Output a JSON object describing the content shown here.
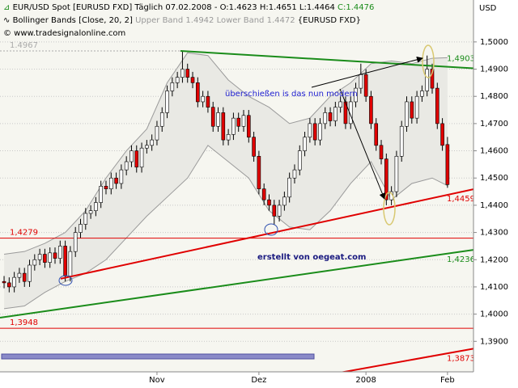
{
  "chart_data": {
    "type": "candlestick",
    "title": "EUR/USD Spot [EURUSD FXD]  Täglich",
    "title_info": "07.02.2008 - O:1.4623 H:1.4651 L:1.4464",
    "title_close": "C:1.4476",
    "indicator": "Bollinger Bands [Close, 20, 2]",
    "indicator_bands": "Upper Band 1.4942 Lower Band 1.4472",
    "indicator_source": "{EURUSD FXD}",
    "copyright": "© www.tradesignalonline.com",
    "y_unit": "USD",
    "annotations": [
      "überschießen is das  nun modern",
      "erstellt von oegeat.com"
    ],
    "categories": [
      null,
      null,
      null,
      null,
      null,
      null,
      null,
      null,
      null,
      null,
      null,
      null,
      null,
      null,
      null,
      null,
      null,
      null,
      null,
      null,
      null,
      null,
      null,
      null,
      null,
      null,
      null,
      null,
      null,
      null,
      "Nov",
      null,
      null,
      null,
      null,
      null,
      null,
      null,
      null,
      null,
      null,
      null,
      null,
      null,
      null,
      null,
      null,
      null,
      null,
      null,
      "Dez",
      null,
      null,
      null,
      null,
      null,
      null,
      null,
      null,
      null,
      null,
      null,
      null,
      null,
      null,
      null,
      null,
      null,
      null,
      null,
      null,
      "2008",
      null,
      null,
      null,
      null,
      null,
      null,
      null,
      null,
      null,
      null,
      null,
      null,
      null,
      null,
      null,
      "Feb"
    ],
    "xlim": [
      -0.8,
      92.1
    ],
    "ylim": [
      1.3788,
      1.5154
    ],
    "yticks": [
      {
        "value": 1.39,
        "label": "1,3900"
      },
      {
        "value": 1.4,
        "label": "1,4000"
      },
      {
        "value": 1.41,
        "label": "1,4100"
      },
      {
        "value": 1.42,
        "label": "1,4200"
      },
      {
        "value": 1.43,
        "label": "1,4300"
      },
      {
        "value": 1.44,
        "label": "1,4400"
      },
      {
        "value": 1.45,
        "label": "1,4500"
      },
      {
        "value": 1.46,
        "label": "1,4600"
      },
      {
        "value": 1.47,
        "label": "1,4700"
      },
      {
        "value": 1.48,
        "label": "1,4800"
      },
      {
        "value": 1.49,
        "label": "1,4900"
      },
      {
        "value": 1.5,
        "label": "1,5000"
      }
    ],
    "grid": true,
    "up_color": "#ffffff",
    "down_color": "#e00000",
    "series": [
      {
        "name": "EUR/USD Spot [EURUSD FXD]",
        "open": [
          1.412,
          1.4115,
          1.41,
          1.4135,
          1.415,
          1.412,
          1.418,
          1.42,
          1.422,
          1.419,
          1.4225,
          1.4205,
          1.425,
          1.414,
          1.423,
          1.43,
          1.433,
          1.437,
          1.438,
          1.441,
          1.447,
          1.446,
          1.45,
          1.448,
          1.453,
          1.456,
          1.46,
          1.454,
          1.461,
          1.462,
          1.464,
          1.469,
          1.474,
          1.482,
          1.485,
          1.487,
          1.49,
          1.487,
          1.485,
          1.478,
          1.48,
          1.476,
          1.469,
          1.474,
          1.464,
          1.466,
          1.472,
          1.469,
          1.473,
          1.465,
          1.458,
          1.446,
          1.442,
          1.44,
          1.436,
          1.44,
          1.443,
          1.45,
          1.453,
          1.46,
          1.465,
          1.47,
          1.464,
          1.47,
          1.474,
          1.471,
          1.476,
          1.478,
          1.47,
          1.478,
          1.483,
          1.488,
          1.48,
          1.47,
          1.462,
          1.457,
          1.442,
          1.445,
          1.458,
          1.469,
          1.478,
          1.472,
          1.48,
          1.482,
          1.49,
          1.483,
          1.47,
          1.4623
        ],
        "high": [
          1.414,
          1.4135,
          1.4155,
          1.417,
          1.417,
          1.42,
          1.422,
          1.424,
          1.424,
          1.4245,
          1.4245,
          1.427,
          1.427,
          1.425,
          1.432,
          1.435,
          1.439,
          1.44,
          1.443,
          1.449,
          1.449,
          1.452,
          1.452,
          1.455,
          1.458,
          1.462,
          1.462,
          1.463,
          1.464,
          1.466,
          1.471,
          1.476,
          1.484,
          1.487,
          1.489,
          1.4967,
          1.492,
          1.489,
          1.487,
          1.482,
          1.482,
          1.478,
          1.476,
          1.476,
          1.468,
          1.474,
          1.474,
          1.475,
          1.475,
          1.467,
          1.46,
          1.448,
          1.444,
          1.442,
          1.442,
          1.445,
          1.452,
          1.455,
          1.462,
          1.467,
          1.472,
          1.472,
          1.472,
          1.476,
          1.476,
          1.478,
          1.48,
          1.48,
          1.48,
          1.485,
          1.492,
          1.49,
          1.482,
          1.472,
          1.464,
          1.459,
          1.447,
          1.46,
          1.471,
          1.48,
          1.48,
          1.482,
          1.484,
          1.495,
          1.492,
          1.485,
          1.472,
          1.4651
        ],
        "low": [
          1.4095,
          1.408,
          1.408,
          1.4115,
          1.41,
          1.41,
          1.416,
          1.418,
          1.417,
          1.417,
          1.4185,
          1.4185,
          1.412,
          1.412,
          1.421,
          1.428,
          1.431,
          1.435,
          1.436,
          1.439,
          1.444,
          1.444,
          1.446,
          1.446,
          1.451,
          1.454,
          1.452,
          1.452,
          1.459,
          1.46,
          1.462,
          1.467,
          1.472,
          1.48,
          1.483,
          1.485,
          1.485,
          1.483,
          1.476,
          1.476,
          1.474,
          1.467,
          1.467,
          1.462,
          1.462,
          1.464,
          1.467,
          1.467,
          1.463,
          1.456,
          1.444,
          1.44,
          1.438,
          1.433,
          1.434,
          1.438,
          1.441,
          1.448,
          1.451,
          1.458,
          1.463,
          1.462,
          1.462,
          1.468,
          1.469,
          1.469,
          1.474,
          1.468,
          1.468,
          1.476,
          1.481,
          1.478,
          1.468,
          1.46,
          1.455,
          1.44,
          1.44,
          1.443,
          1.456,
          1.467,
          1.47,
          1.47,
          1.478,
          1.48,
          1.481,
          1.468,
          1.46,
          1.4464
        ],
        "close": [
          1.4115,
          1.41,
          1.4135,
          1.415,
          1.412,
          1.418,
          1.42,
          1.422,
          1.419,
          1.4225,
          1.4205,
          1.425,
          1.414,
          1.423,
          1.43,
          1.433,
          1.437,
          1.438,
          1.441,
          1.447,
          1.446,
          1.45,
          1.448,
          1.453,
          1.456,
          1.46,
          1.454,
          1.461,
          1.462,
          1.464,
          1.469,
          1.474,
          1.482,
          1.485,
          1.487,
          1.49,
          1.487,
          1.485,
          1.478,
          1.48,
          1.476,
          1.469,
          1.474,
          1.464,
          1.466,
          1.472,
          1.469,
          1.473,
          1.465,
          1.458,
          1.446,
          1.442,
          1.44,
          1.436,
          1.44,
          1.443,
          1.45,
          1.453,
          1.46,
          1.465,
          1.47,
          1.464,
          1.47,
          1.474,
          1.471,
          1.476,
          1.478,
          1.47,
          1.478,
          1.483,
          1.488,
          1.48,
          1.47,
          1.462,
          1.457,
          1.442,
          1.445,
          1.458,
          1.469,
          1.478,
          1.472,
          1.48,
          1.482,
          1.49,
          1.483,
          1.47,
          1.462,
          1.4476
        ]
      }
    ],
    "bands": {
      "color": "#9a9a9a",
      "x": [
        0,
        4,
        8,
        12,
        16,
        20,
        24,
        28,
        32,
        36,
        40,
        44,
        48,
        52,
        56,
        60,
        64,
        68,
        72,
        76,
        80,
        84,
        87
      ],
      "upper": [
        1.422,
        1.423,
        1.426,
        1.43,
        1.438,
        1.45,
        1.46,
        1.468,
        1.485,
        1.496,
        1.495,
        1.486,
        1.48,
        1.476,
        1.47,
        1.472,
        1.48,
        1.485,
        1.492,
        1.493,
        1.492,
        1.494,
        1.4942
      ],
      "lower": [
        1.402,
        1.403,
        1.408,
        1.412,
        1.415,
        1.42,
        1.428,
        1.436,
        1.443,
        1.45,
        1.462,
        1.456,
        1.45,
        1.438,
        1.432,
        1.431,
        1.438,
        1.448,
        1.456,
        1.442,
        1.448,
        1.45,
        1.4472
      ]
    },
    "hlines": [
      {
        "value": 1.4967,
        "label": "1.4967",
        "color": "#aaaaaa",
        "x_end": 34.6
      },
      {
        "value": 1.4279,
        "label": "1,4279",
        "color": "#e00000"
      },
      {
        "value": 1.3948,
        "label": "1,3948",
        "color": "#e00000"
      }
    ],
    "trendlines": [
      {
        "x": [
          34.6,
          92.1
        ],
        "values": [
          1.4967,
          1.4903
        ],
        "color": "#1a8c1a",
        "label": "1,4903",
        "label_pos": "above"
      },
      {
        "x": [
          11.1,
          92.1
        ],
        "values": [
          1.413,
          1.4459
        ],
        "color": "#e00000",
        "label": "1,4459",
        "label_pos": "below"
      },
      {
        "x": [
          -0.8,
          92.1
        ],
        "values": [
          1.3987,
          1.4236
        ],
        "color": "#1a8c1a",
        "label": "1,4236",
        "label_pos": "below"
      },
      {
        "x": [
          65,
          92.1
        ],
        "values": [
          1.3782,
          1.3873
        ],
        "color": "#e00000",
        "label": "1,3873",
        "label_pos": "below"
      }
    ]
  }
}
